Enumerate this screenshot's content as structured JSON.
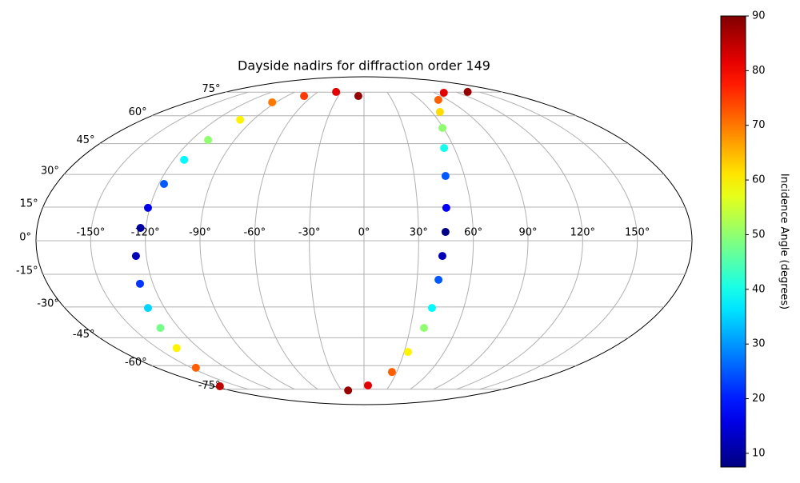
{
  "chart_data": {
    "type": "scatter",
    "projection": "mollweide",
    "title": "Dayside nadirs for diffraction order 149",
    "colormap": "jet",
    "grid": true,
    "xlim": [
      -180,
      180
    ],
    "ylim": [
      -90,
      90
    ],
    "xticks": [
      {
        "value": -150,
        "label": "-150°"
      },
      {
        "value": -120,
        "label": "-120°"
      },
      {
        "value": -90,
        "label": "-90°"
      },
      {
        "value": -60,
        "label": "-60°"
      },
      {
        "value": -30,
        "label": "-30°"
      },
      {
        "value": 0,
        "label": "0°"
      },
      {
        "value": 30,
        "label": "30°"
      },
      {
        "value": 60,
        "label": "60°"
      },
      {
        "value": 90,
        "label": "90°"
      },
      {
        "value": 120,
        "label": "120°"
      },
      {
        "value": 150,
        "label": "150°"
      }
    ],
    "yticks": [
      {
        "value": -75,
        "label": "-75°"
      },
      {
        "value": -60,
        "label": "-60°"
      },
      {
        "value": -45,
        "label": "-45°"
      },
      {
        "value": -30,
        "label": "-30°"
      },
      {
        "value": -15,
        "label": "-15°"
      },
      {
        "value": 0,
        "label": "0°"
      },
      {
        "value": 15,
        "label": "15°"
      },
      {
        "value": 30,
        "label": "30°"
      },
      {
        "value": 45,
        "label": "45°"
      },
      {
        "value": 60,
        "label": "60°"
      },
      {
        "value": 75,
        "label": "75°"
      }
    ],
    "colorbar": {
      "label": "Incidence Angle (degrees)",
      "clim": [
        7.5,
        90
      ],
      "ticks": [
        10,
        20,
        30,
        40,
        50,
        60,
        70,
        80,
        90
      ]
    },
    "series": [
      {
        "x": [
          -6.6,
          -36.5,
          -70,
          -94,
          -100.7,
          -108.5,
          -113.5,
          -117,
          -121,
          -123,
          -125.7,
          -127.4,
          -130,
          -132,
          -136,
          -146,
          -172
        ],
        "y": [
          72.3,
          75.2,
          72.3,
          68.1,
          57.7,
          46.9,
          37,
          25.6,
          14.7,
          5.7,
          -6.8,
          -19.3,
          -30.5,
          -40.1,
          -50.3,
          -61.2,
          -72.9
        ],
        "values": [
          88,
          82,
          75,
          70,
          60,
          50,
          38,
          25,
          16,
          10,
          12,
          22,
          35,
          48,
          60,
          72,
          85
        ]
      },
      {
        "x": [
          -21.4,
          4.7,
          25.6,
          32.9,
          38.9,
          40.9,
          42.1,
          43.2,
          44.8,
          46.1,
          48.7,
          53.3,
          59.3,
          67.3,
          79.7,
          101.8,
          135.6
        ],
        "y": [
          -75.9,
          -72.3,
          -63.7,
          -52.4,
          -40.1,
          -30.5,
          -17.5,
          -6.8,
          3.9,
          14.7,
          29.3,
          42.8,
          53.2,
          62.2,
          69.7,
          74.6,
          75.2
        ],
        "values": [
          88,
          82,
          72,
          60,
          50,
          38,
          25,
          12,
          8,
          17,
          25,
          40,
          50,
          62,
          72,
          82,
          88
        ]
      }
    ]
  }
}
